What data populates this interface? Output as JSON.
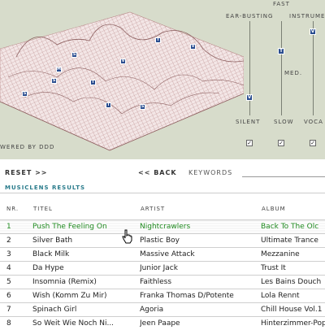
{
  "top": {
    "credit": "WERED BY DDD",
    "sliders_header": "FAST",
    "sliders": [
      {
        "label": "EAR-BUSTING",
        "level": 0.12
      },
      {
        "label": "INSTRUME",
        "level": 0.75,
        "mid_label": "MED."
      },
      {
        "label": "SILENT"
      },
      {
        "label": "SLOW"
      },
      {
        "label": "VOCA"
      }
    ],
    "knob_letters": [
      "V",
      "T",
      "V"
    ],
    "checkboxes": [
      "✓",
      "✓",
      "✓"
    ],
    "map_tags": [
      "T",
      "V",
      "S",
      "V",
      "M",
      "T",
      "S",
      "T",
      "S",
      "S"
    ]
  },
  "nav": {
    "reset": "RESET >>",
    "back": "<< BACK",
    "keywords": "KEYWORDS",
    "results_title": "MUSICLENS RESULTS"
  },
  "table": {
    "headers": [
      "NR.",
      "TITEL",
      "ARTIST",
      "ALBUM"
    ],
    "rows": [
      [
        "1",
        "Push The Feeling On",
        "Nightcrawlers",
        "Back To The Olc"
      ],
      [
        "2",
        "Silver Bath",
        "Plastic Boy",
        "Ultimate Trance"
      ],
      [
        "3",
        "Black Milk",
        "Massive Attack",
        "Mezzanine"
      ],
      [
        "4",
        "Da Hype",
        "Junior Jack",
        "Trust It"
      ],
      [
        "5",
        "Insomnia (Remix)",
        "Faithless",
        "Les Bains Douch"
      ],
      [
        "6",
        "Wish (Komm Zu Mir)",
        "Franka Thomas D/Potente",
        "Lola Rennt"
      ],
      [
        "7",
        "Spinach Girl",
        "Agoria",
        "Chill House Vol.1"
      ],
      [
        "8",
        "So Weit Wie Noch Ni...",
        "Jeen Paape",
        "Hinterzimmer-Pop"
      ]
    ],
    "highlight_row": 0
  },
  "colors": {
    "accent": "#2a4d8f",
    "highlight": "#1f8a1f",
    "panel": "#d7dccb",
    "mesh": "#b98a8a"
  }
}
